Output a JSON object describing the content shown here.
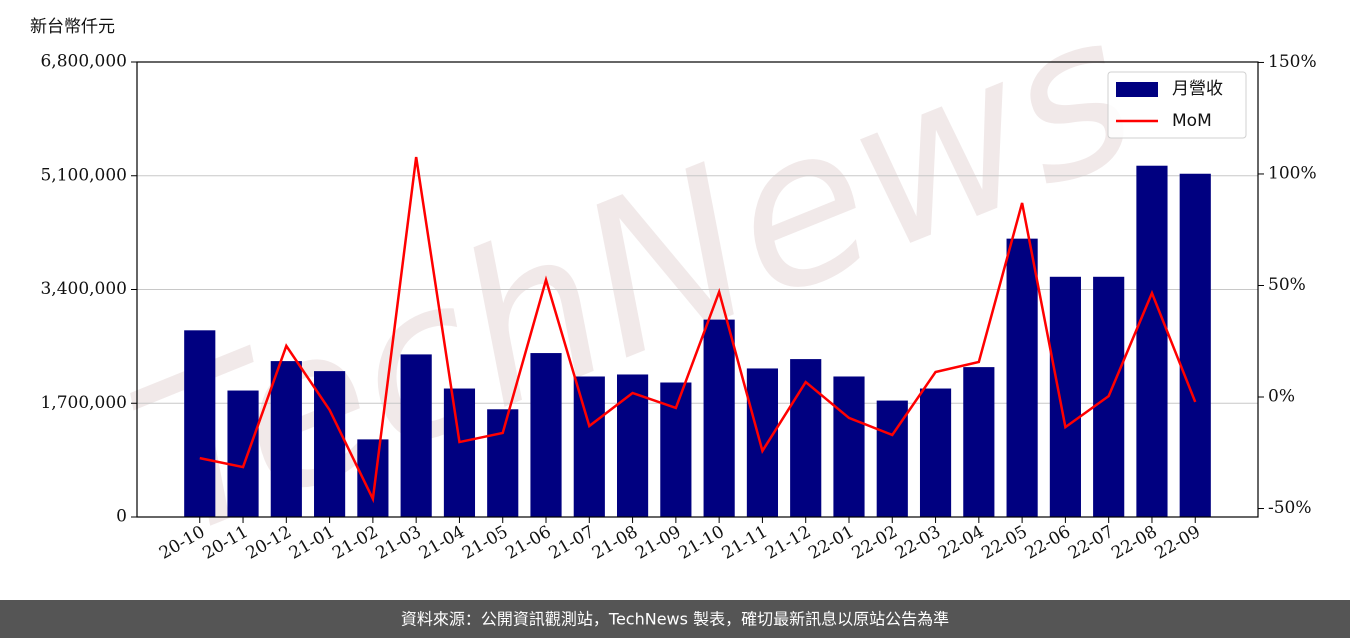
{
  "chart_data": {
    "type": "bar-line",
    "y_axis_label": "新台幣仟元",
    "watermark": "TechNews",
    "footer": "資料來源：公開資訊觀測站，TechNews 製表，確切最新訊息以原站公告為準",
    "categories": [
      "20-10",
      "20-11",
      "20-12",
      "21-01",
      "21-02",
      "21-03",
      "21-04",
      "21-05",
      "21-06",
      "21-07",
      "21-08",
      "21-09",
      "21-10",
      "21-11",
      "21-12",
      "22-01",
      "22-02",
      "22-03",
      "22-04",
      "22-05",
      "22-06",
      "22-07",
      "22-08",
      "22-09"
    ],
    "series": [
      {
        "name": "月營收",
        "type": "bar",
        "color": "#000080",
        "values": [
          2790000,
          1890000,
          2330000,
          2180000,
          1160000,
          2430000,
          1920000,
          1610000,
          2450000,
          2100000,
          2130000,
          2010000,
          2950000,
          2220000,
          2360000,
          2100000,
          1740000,
          1920000,
          2240000,
          4160000,
          3590000,
          3590000,
          5250000,
          5130000
        ]
      },
      {
        "name": "MoM",
        "type": "line",
        "axis": "y2",
        "color": "#ff0000",
        "values": [
          -27.4,
          -31.4,
          22.9,
          -5.8,
          -45.7,
          107.6,
          -20.2,
          -16.1,
          52.5,
          -13.0,
          1.8,
          -4.9,
          47.1,
          -24.2,
          6.7,
          -9.4,
          -17.0,
          11.2,
          15.7,
          87.0,
          -13.5,
          0.4,
          46.6,
          -2.2
        ]
      }
    ],
    "ylim": [
      0,
      6800000
    ],
    "yticks": [
      {
        "value": 0,
        "label": "0"
      },
      {
        "value": 1700000,
        "label": "1,700,000"
      },
      {
        "value": 3400000,
        "label": "3,400,000"
      },
      {
        "value": 5100000,
        "label": "5,100,000"
      },
      {
        "value": 6800000,
        "label": "6,800,000"
      }
    ],
    "y2lim": [
      -53.8,
      150.2
    ],
    "y2ticks": [
      {
        "value": -50,
        "label": "-50%"
      },
      {
        "value": 0,
        "label": "0%"
      },
      {
        "value": 50,
        "label": "50%"
      },
      {
        "value": 100,
        "label": "100%"
      },
      {
        "value": 150,
        "label": "150%"
      }
    ],
    "grid": true,
    "legend": "upper right"
  }
}
